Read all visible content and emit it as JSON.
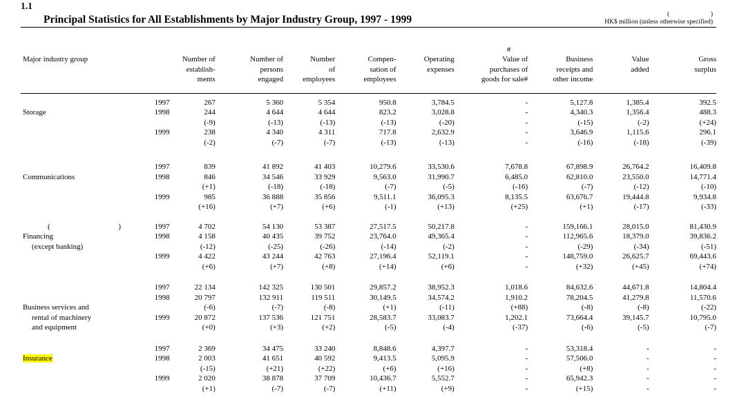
{
  "page": {
    "section_number": "1.1",
    "title": "Principal Statistics for All Establishments by Major Industry Group, 1997 - 1999",
    "unit_note_open": "(",
    "unit_note_close": ")",
    "unit_note": "HK$ million (unless otherwise specified)"
  },
  "colors": {
    "highlight": "#ffff00",
    "text": "#000000",
    "rule": "#000000"
  },
  "table": {
    "headers": [
      {
        "text": "Major industry group",
        "first": true
      },
      {
        "text": ""
      },
      {
        "text": "Number of\nestablish-\nments"
      },
      {
        "text": "Number of\npersons\nengaged"
      },
      {
        "text": "Number\nof\nemployees"
      },
      {
        "text": "Compen-\nsation of\nemployees"
      },
      {
        "text": "Operating\nexpenses"
      },
      {
        "text": "#         \nValue of\npurchases of\ngoods for sale#",
        "hash": true
      },
      {
        "text": "Business\nreceipts and\nother income"
      },
      {
        "text": "Value\nadded"
      },
      {
        "text": "Gross\nsurplus"
      }
    ],
    "groups": [
      {
        "id": "storage",
        "label_rows": [
          {
            "text": ""
          },
          {
            "text": "Storage"
          },
          {
            "text": ""
          },
          {
            "text": ""
          },
          {
            "text": ""
          }
        ],
        "rows": [
          {
            "year": "1997",
            "cells": [
              "267",
              "5 360",
              "5 354",
              "950.8",
              "3,784.5",
              "-",
              "5,127.8",
              "1,385.4",
              "392.5"
            ]
          },
          {
            "year": "1998",
            "cells": [
              "244",
              "4 644",
              "4 644",
              "823.2",
              "3,028.8",
              "-",
              "4,340.3",
              "1,356.4",
              "488.3"
            ]
          },
          {
            "year": "",
            "cells": [
              "(-9)",
              "(-13)",
              "(-13)",
              "(-13)",
              "(-20)",
              "-",
              "(-15)",
              "(-2)",
              "(+24)"
            ]
          },
          {
            "year": "1999",
            "cells": [
              "238",
              "4 340",
              "4 311",
              "717.8",
              "2,632.9",
              "-",
              "3,646.9",
              "1,115.6",
              "296.1"
            ]
          },
          {
            "year": "",
            "cells": [
              "(-2)",
              "(-7)",
              "(-7)",
              "(-13)",
              "(-13)",
              "-",
              "(-16)",
              "(-18)",
              "(-39)"
            ]
          }
        ]
      },
      {
        "id": "communications",
        "label_rows": [
          {
            "text": ""
          },
          {
            "text": "Communications"
          },
          {
            "text": ""
          },
          {
            "text": ""
          },
          {
            "text": ""
          }
        ],
        "rows": [
          {
            "year": "1997",
            "cells": [
              "839",
              "41 892",
              "41 403",
              "10,279.6",
              "33,530.6",
              "7,678.8",
              "67,898.9",
              "26,764.2",
              "16,409.8"
            ]
          },
          {
            "year": "1998",
            "cells": [
              "846",
              "34 546",
              "33 929",
              "9,563.0",
              "31,990.7",
              "6,485.0",
              "62,810.0",
              "23,550.0",
              "14,771.4"
            ]
          },
          {
            "year": "",
            "cells": [
              "(+1)",
              "(-18)",
              "(-18)",
              "(-7)",
              "(-5)",
              "(-16)",
              "(-7)",
              "(-12)",
              "(-10)"
            ]
          },
          {
            "year": "1999",
            "cells": [
              "985",
              "36 888",
              "35 856",
              "9,511.1",
              "36,095.3",
              "8,135.5",
              "63,676.7",
              "19,444.8",
              "9,934.8"
            ]
          },
          {
            "year": "",
            "cells": [
              "(+16)",
              "(+7)",
              "(+6)",
              "(-1)",
              "(+13)",
              "(+25)",
              "(+1)",
              "(-17)",
              "(-33)"
            ]
          }
        ]
      },
      {
        "id": "financing-except-banking",
        "label_rows": [
          {
            "paren": true,
            "open": "(",
            "close": ")"
          },
          {
            "text": "Financing"
          },
          {
            "text": "(except banking)",
            "indent": true
          },
          {
            "text": ""
          },
          {
            "text": ""
          }
        ],
        "rows": [
          {
            "year": "1997",
            "cells": [
              "4 702",
              "54 130",
              "53 387",
              "27,517.5",
              "50,217.8",
              "-",
              "159,166.1",
              "28,015.0",
              "81,430.9"
            ]
          },
          {
            "year": "1998",
            "cells": [
              "4 158",
              "40 435",
              "39 752",
              "23,764.0",
              "49,365.4",
              "-",
              "112,965.6",
              "18,379.0",
              "39,836.2"
            ]
          },
          {
            "year": "",
            "cells": [
              "(-12)",
              "(-25)",
              "(-26)",
              "(-14)",
              "(-2)",
              "-",
              "(-29)",
              "(-34)",
              "(-51)"
            ]
          },
          {
            "year": "1999",
            "cells": [
              "4 422",
              "43 244",
              "42 763",
              "27,196.4",
              "52,119.1",
              "-",
              "148,759.0",
              "26,625.7",
              "69,443.6"
            ]
          },
          {
            "year": "",
            "cells": [
              "(+6)",
              "(+7)",
              "(+8)",
              "(+14)",
              "(+6)",
              "-",
              "(+32)",
              "(+45)",
              "(+74)"
            ]
          }
        ]
      },
      {
        "id": "business-services",
        "label_rows": [
          {
            "text": ""
          },
          {
            "text": ""
          },
          {
            "text": "Business services and"
          },
          {
            "text": "rental of machinery",
            "indent": true
          },
          {
            "text": "and equipment",
            "indent": true
          }
        ],
        "rows": [
          {
            "year": "1997",
            "cells": [
              "22 134",
              "142 325",
              "130 501",
              "29,857.2",
              "38,952.3",
              "1,018.6",
              "84,632.6",
              "44,671.8",
              "14,804.4"
            ]
          },
          {
            "year": "1998",
            "cells": [
              "20 797",
              "132 911",
              "119 511",
              "30,149.5",
              "34,574.2",
              "1,910.2",
              "78,204.5",
              "41,279.8",
              "11,570.6"
            ]
          },
          {
            "year": "",
            "cells": [
              "(-6)",
              "(-7)",
              "(-8)",
              "(+1)",
              "(-11)",
              "(+88)",
              "(-8)",
              "(-8)",
              "(-22)"
            ]
          },
          {
            "year": "1999",
            "cells": [
              "20 872",
              "137 536",
              "121 751",
              "28,583.7",
              "33,083.7",
              "1,202.1",
              "73,664.4",
              "39,145.7",
              "10,795.0"
            ]
          },
          {
            "year": "",
            "cells": [
              "(+0)",
              "(+3)",
              "(+2)",
              "(-5)",
              "(-4)",
              "(-37)",
              "(-6)",
              "(-5)",
              "(-7)"
            ]
          }
        ]
      },
      {
        "id": "insurance",
        "label_rows": [
          {
            "text": ""
          },
          {
            "text": "Insurance",
            "highlight": true
          },
          {
            "text": ""
          },
          {
            "text": ""
          },
          {
            "text": ""
          }
        ],
        "rows": [
          {
            "year": "1997",
            "cells": [
              "2 369",
              "34 475",
              "33 240",
              "8,848.6",
              "4,397.7",
              "-",
              "53,318.4",
              "-",
              "-"
            ]
          },
          {
            "year": "1998",
            "cells": [
              "2 003",
              "41 651",
              "40 592",
              "9,413.5",
              "5,095.9",
              "-",
              "57,506.0",
              "-",
              "-"
            ]
          },
          {
            "year": "",
            "cells": [
              "(-15)",
              "(+21)",
              "(+22)",
              "(+6)",
              "(+16)",
              "-",
              "(+8)",
              "-",
              "-"
            ]
          },
          {
            "year": "1999",
            "cells": [
              "2 020",
              "38 878",
              "37 709",
              "10,436.7",
              "5,552.7",
              "-",
              "65,942.3",
              "-",
              "-"
            ]
          },
          {
            "year": "",
            "cells": [
              "(+1)",
              "(-7)",
              "(-7)",
              "(+11)",
              "(+9)",
              "-",
              "(+15)",
              "-",
              "-"
            ]
          }
        ]
      }
    ]
  }
}
